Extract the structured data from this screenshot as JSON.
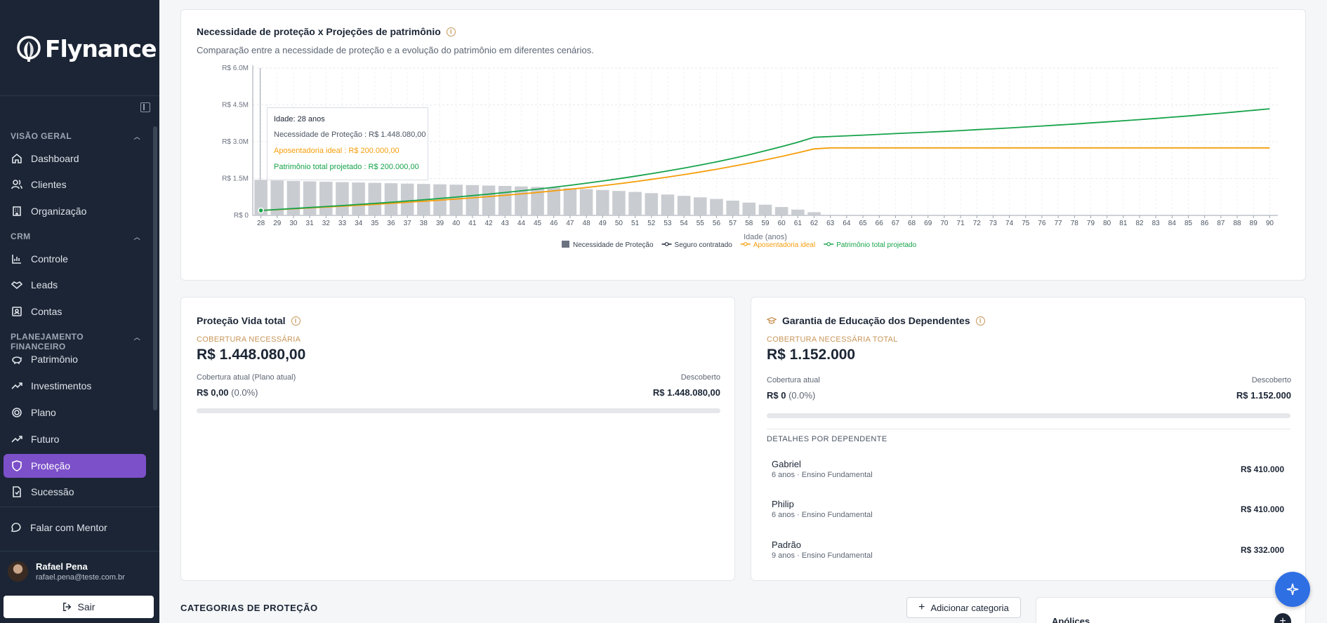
{
  "brand": {
    "name": "Flynance"
  },
  "sidebar": {
    "sections": [
      {
        "title": "VISÃO GERAL",
        "items": [
          {
            "label": "Dashboard",
            "icon": "home-icon"
          },
          {
            "label": "Clientes",
            "icon": "users-icon"
          },
          {
            "label": "Organização",
            "icon": "building-icon"
          }
        ]
      },
      {
        "title": "CRM",
        "items": [
          {
            "label": "Controle",
            "icon": "bar-chart-icon"
          },
          {
            "label": "Leads",
            "icon": "handshake-icon"
          },
          {
            "label": "Contas",
            "icon": "contact-icon"
          }
        ]
      },
      {
        "title": "PLANEJAMENTO FINANCEIRO",
        "items": [
          {
            "label": "Patrimônio",
            "icon": "piggy-bank-icon"
          },
          {
            "label": "Investimentos",
            "icon": "trending-up-icon"
          },
          {
            "label": "Plano",
            "icon": "target-icon"
          },
          {
            "label": "Futuro",
            "icon": "trending-up-icon"
          },
          {
            "label": "Proteção",
            "icon": "shield-icon",
            "active": true
          },
          {
            "label": "Sucessão",
            "icon": "file-icon"
          }
        ]
      }
    ],
    "mentor": "Falar com Mentor",
    "user": {
      "name": "Rafael Pena",
      "email": "rafael.pena@teste.com.br"
    },
    "logout": "Sair"
  },
  "chart_card": {
    "title": "Necessidade de proteção x Projeções de patrimônio",
    "subtitle": "Comparação entre a necessidade de proteção e a evolução do patrimônio em diferentes cenários.",
    "tooltip": {
      "age": "Idade: 28 anos",
      "need": "Necessidade de Proteção : R$ 1.448.080,00",
      "retire": "Aposentadoria ideal : R$ 200.000,00",
      "total": "Patrimônio total projetado : R$ 200.000,00"
    }
  },
  "chart_data": {
    "type": "bar",
    "xlabel": "Idade (anos)",
    "ylabel": "",
    "ylim": [
      0,
      6000000
    ],
    "yticks": [
      {
        "value": 0,
        "label": "R$ 0"
      },
      {
        "value": 1500000,
        "label": "R$ 1.5M"
      },
      {
        "value": 3000000,
        "label": "R$ 3.0M"
      },
      {
        "value": 4500000,
        "label": "R$ 4.5M"
      },
      {
        "value": 6000000,
        "label": "R$ 6.0M"
      }
    ],
    "x_start": 28,
    "x_end": 90,
    "legend_position": "bottom",
    "series": [
      {
        "name": "Necessidade de Proteção",
        "kind": "bar",
        "color": "#c9ccd1",
        "legend_color": "#6b7280",
        "values": [
          1448080,
          1420000,
          1400000,
          1385000,
          1370000,
          1355000,
          1340000,
          1325000,
          1310000,
          1295000,
          1280000,
          1265000,
          1250000,
          1235000,
          1215000,
          1200000,
          1180000,
          1160000,
          1135000,
          1105000,
          1070000,
          1035000,
          995000,
          955000,
          905000,
          850000,
          795000,
          735000,
          670000,
          600000,
          520000,
          435000,
          340000,
          235000,
          130000
        ]
      },
      {
        "name": "Seguro contratado",
        "kind": "line",
        "color": "#1b2535",
        "values": []
      },
      {
        "name": "Aposentadoria ideal",
        "kind": "line",
        "color": "#f59e0b",
        "values": [
          200000,
          235000,
          270000,
          305000,
          340000,
          375000,
          410000,
          450000,
          490000,
          530000,
          575000,
          620000,
          665000,
          715000,
          765000,
          820000,
          875000,
          935000,
          1000000,
          1065000,
          1135000,
          1210000,
          1290000,
          1375000,
          1465000,
          1560000,
          1660000,
          1765000,
          1880000,
          2000000,
          2125000,
          2260000,
          2400000,
          2550000,
          2710000,
          2750000,
          2750000,
          2750000,
          2750000,
          2750000,
          2750000,
          2750000,
          2750000,
          2750000,
          2750000,
          2750000,
          2750000,
          2750000,
          2750000,
          2750000,
          2750000,
          2750000,
          2750000,
          2750000,
          2750000,
          2750000,
          2750000,
          2750000,
          2750000,
          2750000,
          2750000,
          2750000,
          2750000
        ]
      },
      {
        "name": "Patrimônio total projetado",
        "kind": "line",
        "color": "#16a34a",
        "values": [
          200000,
          240000,
          280000,
          320000,
          360000,
          400000,
          445000,
          490000,
          535000,
          585000,
          635000,
          690000,
          745000,
          805000,
          865000,
          930000,
          1000000,
          1070000,
          1145000,
          1225000,
          1310000,
          1400000,
          1495000,
          1595000,
          1700000,
          1810000,
          1925000,
          2050000,
          2180000,
          2320000,
          2470000,
          2630000,
          2800000,
          2980000,
          3180000,
          3210000,
          3240000,
          3270000,
          3300000,
          3330000,
          3360000,
          3390000,
          3420000,
          3455000,
          3490000,
          3525000,
          3560000,
          3600000,
          3640000,
          3680000,
          3720000,
          3765000,
          3810000,
          3855000,
          3900000,
          3950000,
          4000000,
          4050000,
          4105000,
          4160000,
          4220000,
          4280000,
          4340000
        ]
      }
    ]
  },
  "vida_card": {
    "title": "Proteção Vida total",
    "label": "COBERTURA NECESSÁRIA",
    "value": "R$ 1.448.080,00",
    "current_label": "Cobertura atual (Plano atual)",
    "current_value": "R$ 0,00",
    "current_pct": "(0.0%)",
    "uncovered_label": "Descoberto",
    "uncovered_value": "R$ 1.448.080,00",
    "progress": 0
  },
  "edu_card": {
    "title": "Garantia de Educação dos Dependentes",
    "label": "COBERTURA NECESSÁRIA TOTAL",
    "value": "R$ 1.152.000",
    "current_label": "Cobertura atual",
    "current_value": "R$ 0",
    "current_pct": "(0.0%)",
    "uncovered_label": "Descoberto",
    "uncovered_value": "R$ 1.152.000",
    "progress": 0,
    "details_title": "DETALHES POR DEPENDENTE",
    "dependents": [
      {
        "name": "Gabriel",
        "sub": "6 anos · Ensino Fundamental",
        "value": "R$ 410.000"
      },
      {
        "name": "Philip",
        "sub": "6 anos · Ensino Fundamental",
        "value": "R$ 410.000"
      },
      {
        "name": "Padrão",
        "sub": "9 anos · Ensino Fundamental",
        "value": "R$ 332.000"
      }
    ]
  },
  "categories": {
    "title": "CATEGORIAS DE PROTEÇÃO",
    "add_label": "Adicionar categoria"
  },
  "apolices": {
    "title": "Apólices"
  },
  "colors": {
    "accent": "#7c50c9",
    "sidebar_bg": "#1b2535",
    "gold": "#c8965a"
  }
}
